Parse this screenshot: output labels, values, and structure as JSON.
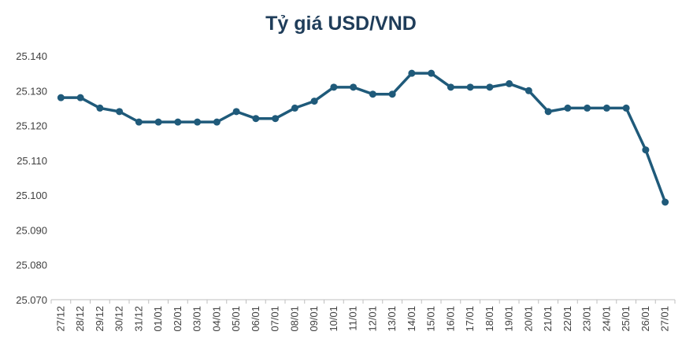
{
  "chart_data": {
    "type": "line",
    "title": "Tỷ giá USD/VND",
    "xlabel": "",
    "ylabel": "",
    "ylim": [
      25070,
      25140
    ],
    "ytick_values": [
      25070,
      25080,
      25090,
      25100,
      25110,
      25120,
      25130,
      25140
    ],
    "ytick_labels": [
      "25.070",
      "25.080",
      "25.090",
      "25.100",
      "25.110",
      "25.120",
      "25.130",
      "25.140"
    ],
    "categories": [
      "27/12",
      "28/12",
      "29/12",
      "30/12",
      "31/12",
      "01/01",
      "02/01",
      "03/01",
      "04/01",
      "05/01",
      "06/01",
      "07/01",
      "08/01",
      "09/01",
      "10/01",
      "11/01",
      "12/01",
      "13/01",
      "14/01",
      "15/01",
      "16/01",
      "17/01",
      "18/01",
      "19/01",
      "20/01",
      "21/01",
      "22/01",
      "23/01",
      "24/01",
      "25/01",
      "26/01",
      "27/01"
    ],
    "series": [
      {
        "values": [
          25128,
          25128,
          25125,
          25124,
          25121,
          25121,
          25121,
          25121,
          25121,
          25124,
          25122,
          25122,
          25125,
          25127,
          25131,
          25131,
          25129,
          25129,
          25135,
          25135,
          25131,
          25131,
          25131,
          25132,
          25130,
          25124,
          25125,
          25125,
          25125,
          25125,
          25113,
          25098
        ]
      }
    ],
    "grid": false,
    "legend": "none",
    "colors": {
      "line": "#1f5a7a",
      "title": "#1f3d5a",
      "axis": "#bfbfbf"
    }
  }
}
